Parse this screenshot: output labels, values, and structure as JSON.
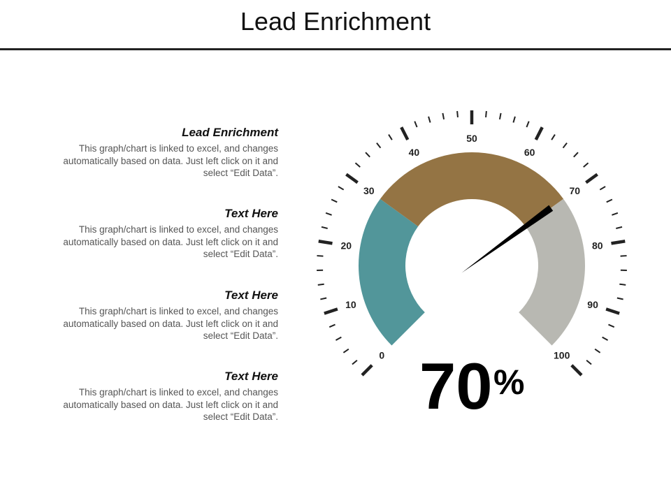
{
  "title": "Lead Enrichment",
  "blocks": [
    {
      "heading": "Lead Enrichment",
      "body": "This graph/chart is linked to excel, and changes automatically based on data. Just left click on it and select “Edit Data”."
    },
    {
      "heading": "Text Here",
      "body": "This graph/chart is linked to excel, and changes automatically based on data. Just left click on it and select “Edit Data”."
    },
    {
      "heading": "Text Here",
      "body": "This graph/chart is linked to excel, and changes automatically based on data. Just left click on it and select “Edit Data”."
    },
    {
      "heading": "Text Here",
      "body": "This graph/chart is linked to excel, and changes automatically based on data. Just left click on it and select “Edit Data”."
    }
  ],
  "chart_data": {
    "type": "gauge",
    "min": 0,
    "max": 100,
    "value": 70,
    "value_label": "70",
    "unit": "%",
    "tick_labels": [
      "0",
      "10",
      "20",
      "30",
      "40",
      "50",
      "60",
      "70",
      "80",
      "90",
      "100"
    ],
    "bands": [
      {
        "from": 0,
        "to": 30,
        "color": "#52969a"
      },
      {
        "from": 30,
        "to": 70,
        "color": "#947444"
      },
      {
        "from": 70,
        "to": 100,
        "color": "#b8b8b2"
      }
    ],
    "needle_color": "#000000",
    "tick_color": "#222222"
  }
}
